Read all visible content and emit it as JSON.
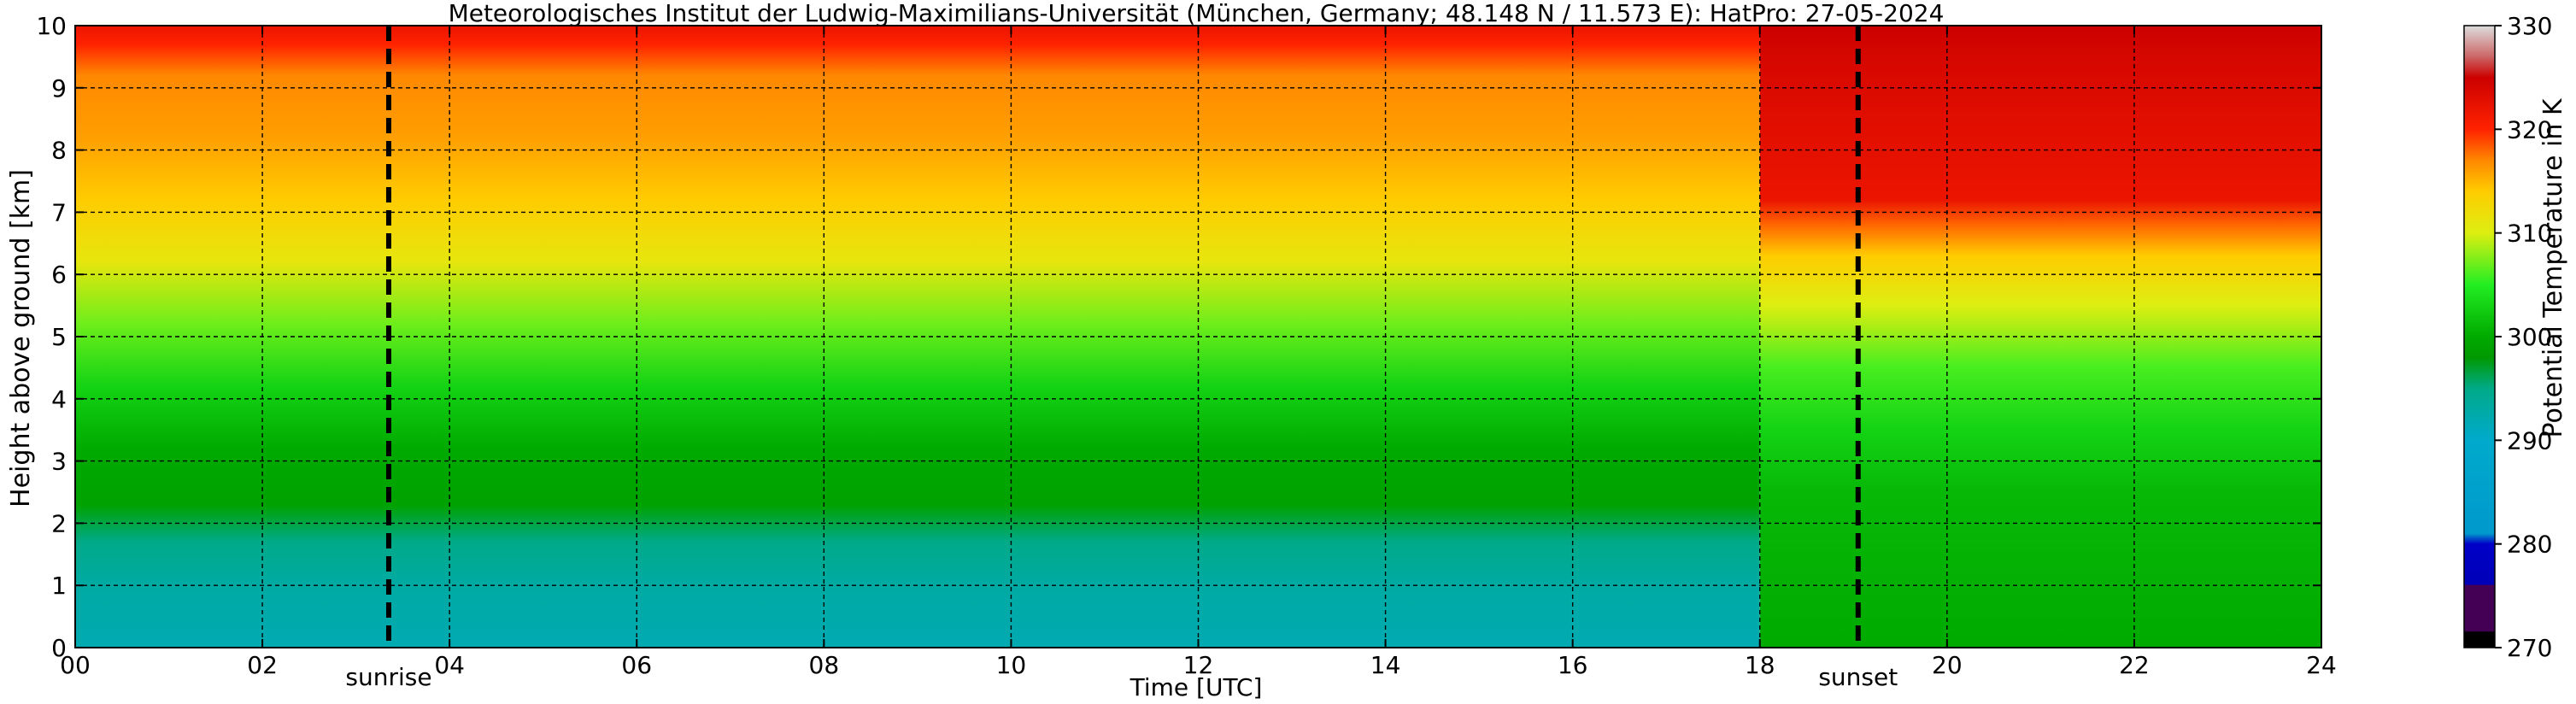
{
  "chart_data": {
    "type": "heatmap",
    "title": "Meteorologisches Institut der Ludwig-Maximilians-Universität (München, Germany; 48.148 N / 11.573 E):    HatPro: 27-05-2024",
    "xlabel": "Time [UTC]",
    "ylabel": "Height above ground [km]",
    "xlim": [
      0,
      24
    ],
    "ylim": [
      0,
      10
    ],
    "x_ticks": [
      0,
      2,
      4,
      6,
      8,
      10,
      12,
      14,
      16,
      18,
      20,
      22,
      24
    ],
    "x_tick_labels": [
      "00",
      "02",
      "04",
      "06",
      "08",
      "10",
      "12",
      "14",
      "16",
      "18",
      "20",
      "22",
      "24"
    ],
    "y_ticks": [
      0,
      1,
      2,
      3,
      4,
      5,
      6,
      7,
      8,
      9,
      10
    ],
    "y_tick_labels": [
      "0",
      "1",
      "2",
      "3",
      "4",
      "5",
      "6",
      "7",
      "8",
      "9",
      "10"
    ],
    "grid": true,
    "colorbar": {
      "label": "Potential Temperature in K",
      "range": [
        270,
        330
      ],
      "ticks": [
        270,
        280,
        290,
        300,
        310,
        320,
        330
      ],
      "tick_labels": [
        "270",
        "280",
        "290",
        "300",
        "310",
        "320",
        "330"
      ],
      "stops": [
        {
          "value": 270,
          "color": "#000000"
        },
        {
          "value": 271.5,
          "color": "#000000"
        },
        {
          "value": 271.6,
          "color": "#440055"
        },
        {
          "value": 276,
          "color": "#440055"
        },
        {
          "value": 276.1,
          "color": "#0000b8"
        },
        {
          "value": 280,
          "color": "#0000c8"
        },
        {
          "value": 281,
          "color": "#0099cc"
        },
        {
          "value": 290,
          "color": "#00aacc"
        },
        {
          "value": 295,
          "color": "#00aa88"
        },
        {
          "value": 298,
          "color": "#009900"
        },
        {
          "value": 300,
          "color": "#00aa00"
        },
        {
          "value": 305,
          "color": "#22ee22"
        },
        {
          "value": 310,
          "color": "#ddee11"
        },
        {
          "value": 314,
          "color": "#ffcc00"
        },
        {
          "value": 317,
          "color": "#ff8800"
        },
        {
          "value": 320,
          "color": "#ff2200"
        },
        {
          "value": 325,
          "color": "#cc0000"
        },
        {
          "value": 327,
          "color": "#cc6666"
        },
        {
          "value": 330,
          "color": "#dddddd"
        }
      ]
    },
    "field": {
      "periods": [
        {
          "time_range": [
            0,
            18
          ],
          "profile": [
            {
              "height": 0,
              "value": 292
            },
            {
              "height": 1,
              "value": 293
            },
            {
              "height": 1.7,
              "value": 295
            },
            {
              "height": 2.3,
              "value": 299
            },
            {
              "height": 3.2,
              "value": 300
            },
            {
              "height": 4.2,
              "value": 303
            },
            {
              "height": 5.2,
              "value": 307
            },
            {
              "height": 6.2,
              "value": 311
            },
            {
              "height": 7.2,
              "value": 314
            },
            {
              "height": 8.2,
              "value": 316
            },
            {
              "height": 9.2,
              "value": 317
            },
            {
              "height": 9.7,
              "value": 320
            },
            {
              "height": 10,
              "value": 322
            }
          ]
        },
        {
          "time_range": [
            18,
            24
          ],
          "profile": [
            {
              "height": 0,
              "value": 300
            },
            {
              "height": 2.5,
              "value": 301
            },
            {
              "height": 3.5,
              "value": 303
            },
            {
              "height": 4.5,
              "value": 306
            },
            {
              "height": 5.5,
              "value": 310
            },
            {
              "height": 6.3,
              "value": 314
            },
            {
              "height": 6.8,
              "value": 318
            },
            {
              "height": 7.2,
              "value": 322
            },
            {
              "height": 8.5,
              "value": 323
            },
            {
              "height": 9.5,
              "value": 324
            },
            {
              "height": 10,
              "value": 325
            }
          ]
        }
      ]
    },
    "annotations": [
      {
        "type": "vline",
        "x": 3.35,
        "label": "sunrise"
      },
      {
        "type": "vline",
        "x": 19.05,
        "label": "sunset"
      }
    ]
  }
}
